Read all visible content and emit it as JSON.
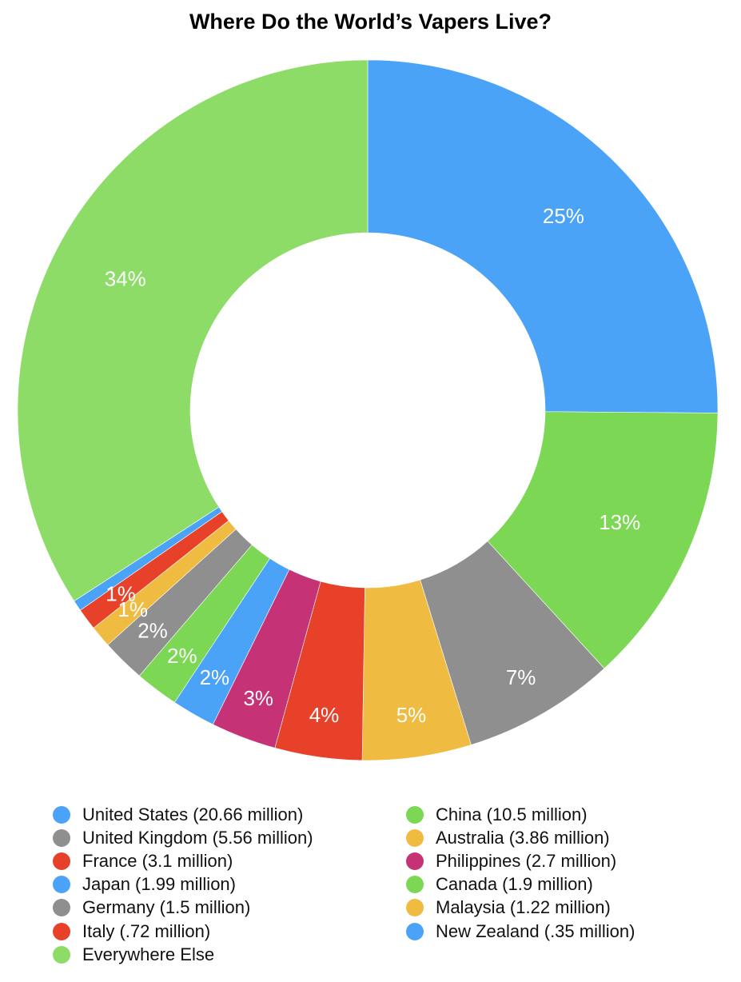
{
  "chart_data": {
    "type": "pie",
    "donut": true,
    "title": "Where Do the World’s Vapers Live?",
    "slices": [
      {
        "label": "United States (20.66 million)",
        "value": 25,
        "display": "25%",
        "color": "#4aa3f7"
      },
      {
        "label": "China (10.5 million)",
        "value": 13,
        "display": "13%",
        "color": "#7cd854"
      },
      {
        "label": "United Kingdom (5.56 million)",
        "value": 7,
        "display": "7%",
        "color": "#8f8f8f"
      },
      {
        "label": "Australia (3.86 million)",
        "value": 5,
        "display": "5%",
        "color": "#efbb40"
      },
      {
        "label": "France (3.1 million)",
        "value": 4,
        "display": "4%",
        "color": "#e8412a"
      },
      {
        "label": "Philippines (2.7 million)",
        "value": 3,
        "display": "3%",
        "color": "#c53275"
      },
      {
        "label": "Japan (1.99 million)",
        "value": 2,
        "display": "2%",
        "color": "#4aa3f7"
      },
      {
        "label": "Canada (1.9 million)",
        "value": 2,
        "display": "2%",
        "color": "#7cd854"
      },
      {
        "label": "Germany (1.5 million)",
        "value": 2,
        "display": "2%",
        "color": "#8f8f8f"
      },
      {
        "label": "Malaysia (1.22 million)",
        "value": 1,
        "display": "1%",
        "color": "#efbb40"
      },
      {
        "label": "Italy (.72 million)",
        "value": 1,
        "display": "1%",
        "color": "#e8412a"
      },
      {
        "label": "New Zealand (.35 million)",
        "value": 0.5,
        "display": "",
        "color": "#4aa3f7"
      },
      {
        "label": "Everywhere Else",
        "value": 34,
        "display": "34%",
        "color": "#8ddc68"
      }
    ],
    "legend": {
      "placement": "bottom",
      "columns": [
        [
          "United States (20.66 million)",
          "United Kingdom (5.56 million)",
          "France (3.1 million)",
          "Japan (1.99 million)",
          "Germany (1.5 million)",
          "Italy (.72 million)",
          "Everywhere Else"
        ],
        [
          "China (10.5 million)",
          "Australia (3.86 million)",
          "Philippines (2.7 million)",
          "Canada (1.9 million)",
          "Malaysia (1.22 million)",
          "New Zealand (.35 million)"
        ]
      ]
    }
  }
}
